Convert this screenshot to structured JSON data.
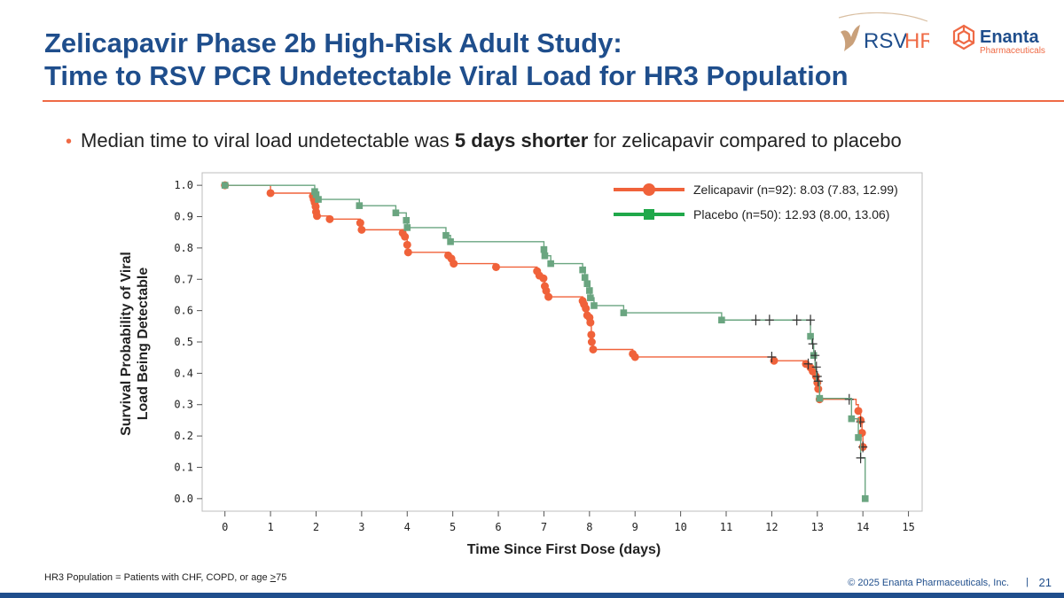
{
  "title": {
    "line1": "Zelicapavir Phase 2b High-Risk Adult Study:",
    "line2": "Time to RSV PCR Undetectable Viral Load for HR3 Population"
  },
  "logos": {
    "rsv_a": "RSV",
    "rsv_b": "HR",
    "enanta_name": "Enanta",
    "enanta_sub": "Pharmaceuticals"
  },
  "bullet": {
    "pre": "Median time to viral load undetectable was ",
    "bold": "5 days shorter",
    "post": " for zelicapavir compared to placebo"
  },
  "footnote": {
    "pre": "HR3 Population = Patients with CHF, COPD, or age ",
    "ge": ">",
    "post": "75"
  },
  "copyright": "© 2025  Enanta Pharmaceuticals, Inc.",
  "separator": "|",
  "page_number": "21",
  "colors": {
    "title": "#1f4e8c",
    "accent": "#ef6a45",
    "zeli": "#f0623a",
    "placebo": "#6aa580",
    "placebo_legend": "#20a84a"
  },
  "chart_data": {
    "type": "line",
    "subtype": "kaplan-meier step",
    "xlabel": "Time Since First Dose (days)",
    "ylabel_line1": "Survival Probability of Viral",
    "ylabel_line2": "Load Being Detectable",
    "xlim": [
      -0.5,
      15.3
    ],
    "ylim": [
      -0.04,
      1.04
    ],
    "xticks": [
      0,
      1,
      2,
      3,
      4,
      5,
      6,
      7,
      8,
      9,
      10,
      11,
      12,
      13,
      14,
      15
    ],
    "xtick_labels": [
      "0",
      "1",
      "2",
      "3",
      "4",
      "5",
      "6",
      "7",
      "8",
      "9",
      "10",
      "11",
      "12",
      "13",
      "14",
      "15"
    ],
    "yticks": [
      0,
      0.1,
      0.2,
      0.3,
      0.4,
      0.5,
      0.6,
      0.7,
      0.8,
      0.9,
      1.0
    ],
    "ytick_labels": [
      "0.0",
      "0.1",
      "0.2",
      "0.3",
      "0.4",
      "0.5",
      "0.6",
      "0.7",
      "0.8",
      "0.9",
      "1.0"
    ],
    "series": [
      {
        "name": "Zelicapavir (n=92): 8.03 (7.83, 12.99)",
        "steps": [
          [
            0,
            1.0
          ],
          [
            1,
            0.975
          ],
          [
            1.93,
            0.965
          ],
          [
            1.95,
            0.955
          ],
          [
            1.97,
            0.945
          ],
          [
            1.99,
            0.932
          ],
          [
            2.0,
            0.915
          ],
          [
            2.02,
            0.902
          ],
          [
            2.3,
            0.892
          ],
          [
            2.97,
            0.88
          ],
          [
            3.0,
            0.858
          ],
          [
            3.9,
            0.848
          ],
          [
            3.95,
            0.836
          ],
          [
            4.0,
            0.81
          ],
          [
            4.02,
            0.786
          ],
          [
            4.9,
            0.776
          ],
          [
            4.97,
            0.766
          ],
          [
            5.02,
            0.75
          ],
          [
            5.95,
            0.739
          ],
          [
            6.85,
            0.726
          ],
          [
            6.9,
            0.712
          ],
          [
            6.99,
            0.703
          ],
          [
            7.02,
            0.678
          ],
          [
            7.05,
            0.663
          ],
          [
            7.1,
            0.644
          ],
          [
            7.85,
            0.631
          ],
          [
            7.88,
            0.62
          ],
          [
            7.92,
            0.607
          ],
          [
            7.95,
            0.585
          ],
          [
            8.0,
            0.578
          ],
          [
            8.02,
            0.562
          ],
          [
            8.04,
            0.523
          ],
          [
            8.05,
            0.5
          ],
          [
            8.08,
            0.476
          ],
          [
            8.95,
            0.462
          ],
          [
            9.0,
            0.452
          ],
          [
            12.05,
            0.44
          ],
          [
            12.75,
            0.43
          ],
          [
            12.85,
            0.418
          ],
          [
            12.9,
            0.406
          ],
          [
            12.97,
            0.39
          ],
          [
            13.0,
            0.37
          ],
          [
            13.02,
            0.35
          ],
          [
            13.05,
            0.317
          ],
          [
            13.85,
            0.3
          ],
          [
            13.9,
            0.28
          ],
          [
            13.95,
            0.25
          ],
          [
            13.98,
            0.21
          ],
          [
            14.0,
            0.165
          ],
          [
            14.05,
            0.16
          ]
        ],
        "markers": [
          [
            0,
            1.0
          ],
          [
            1,
            0.975
          ],
          [
            1.93,
            0.965
          ],
          [
            1.95,
            0.955
          ],
          [
            1.97,
            0.945
          ],
          [
            1.99,
            0.932
          ],
          [
            2.0,
            0.915
          ],
          [
            2.02,
            0.902
          ],
          [
            2.3,
            0.892
          ],
          [
            2.97,
            0.88
          ],
          [
            3.0,
            0.858
          ],
          [
            3.9,
            0.848
          ],
          [
            3.95,
            0.836
          ],
          [
            4.0,
            0.81
          ],
          [
            4.02,
            0.786
          ],
          [
            4.9,
            0.776
          ],
          [
            4.97,
            0.766
          ],
          [
            5.02,
            0.75
          ],
          [
            5.95,
            0.739
          ],
          [
            6.85,
            0.726
          ],
          [
            6.9,
            0.712
          ],
          [
            6.99,
            0.703
          ],
          [
            7.02,
            0.678
          ],
          [
            7.05,
            0.663
          ],
          [
            7.1,
            0.644
          ],
          [
            7.85,
            0.631
          ],
          [
            7.88,
            0.62
          ],
          [
            7.92,
            0.607
          ],
          [
            7.95,
            0.585
          ],
          [
            8.0,
            0.578
          ],
          [
            8.02,
            0.562
          ],
          [
            8.04,
            0.523
          ],
          [
            8.05,
            0.5
          ],
          [
            8.08,
            0.476
          ],
          [
            8.95,
            0.462
          ],
          [
            9.0,
            0.452
          ],
          [
            12.05,
            0.44
          ],
          [
            12.75,
            0.43
          ],
          [
            12.85,
            0.418
          ],
          [
            12.9,
            0.406
          ],
          [
            12.97,
            0.39
          ],
          [
            13.0,
            0.37
          ],
          [
            13.02,
            0.35
          ],
          [
            13.05,
            0.317
          ],
          [
            13.9,
            0.28
          ],
          [
            13.95,
            0.25
          ],
          [
            13.98,
            0.21
          ],
          [
            14.0,
            0.165
          ]
        ],
        "censored": [
          [
            12.0,
            0.452
          ],
          [
            12.8,
            0.43
          ],
          [
            13.7,
            0.317
          ],
          [
            13.95,
            0.245
          ],
          [
            14.0,
            0.165
          ]
        ]
      },
      {
        "name": "Placebo (n=50): 12.93 (8.00, 13.06)",
        "steps": [
          [
            0,
            1.0
          ],
          [
            1.97,
            0.98
          ],
          [
            2.0,
            0.97
          ],
          [
            2.05,
            0.955
          ],
          [
            2.95,
            0.935
          ],
          [
            3.75,
            0.912
          ],
          [
            3.98,
            0.888
          ],
          [
            4.0,
            0.865
          ],
          [
            4.85,
            0.84
          ],
          [
            4.95,
            0.82
          ],
          [
            7.0,
            0.795
          ],
          [
            7.02,
            0.775
          ],
          [
            7.15,
            0.75
          ],
          [
            7.85,
            0.73
          ],
          [
            7.9,
            0.706
          ],
          [
            7.95,
            0.686
          ],
          [
            8.0,
            0.664
          ],
          [
            8.02,
            0.641
          ],
          [
            8.1,
            0.616
          ],
          [
            8.75,
            0.593
          ],
          [
            10.9,
            0.57
          ],
          [
            12.85,
            0.518
          ],
          [
            12.88,
            0.494
          ],
          [
            12.92,
            0.457
          ],
          [
            12.95,
            0.415
          ],
          [
            12.98,
            0.375
          ],
          [
            13.05,
            0.32
          ],
          [
            13.75,
            0.255
          ],
          [
            13.9,
            0.195
          ],
          [
            13.95,
            0.13
          ],
          [
            14.05,
            0.0
          ]
        ],
        "markers": [
          [
            0,
            1.0
          ],
          [
            1.97,
            0.98
          ],
          [
            2.0,
            0.97
          ],
          [
            2.05,
            0.955
          ],
          [
            2.95,
            0.935
          ],
          [
            3.75,
            0.912
          ],
          [
            3.98,
            0.888
          ],
          [
            4.0,
            0.865
          ],
          [
            4.85,
            0.84
          ],
          [
            4.95,
            0.82
          ],
          [
            7.0,
            0.795
          ],
          [
            7.02,
            0.775
          ],
          [
            7.15,
            0.75
          ],
          [
            7.85,
            0.73
          ],
          [
            7.9,
            0.706
          ],
          [
            7.95,
            0.686
          ],
          [
            8.0,
            0.664
          ],
          [
            8.02,
            0.641
          ],
          [
            8.1,
            0.616
          ],
          [
            8.75,
            0.593
          ],
          [
            10.9,
            0.57
          ],
          [
            12.85,
            0.518
          ],
          [
            12.92,
            0.457
          ],
          [
            13.05,
            0.32
          ],
          [
            13.75,
            0.255
          ],
          [
            13.9,
            0.195
          ],
          [
            14.05,
            0.0
          ]
        ],
        "censored": [
          [
            11.65,
            0.57
          ],
          [
            11.95,
            0.57
          ],
          [
            12.55,
            0.57
          ],
          [
            12.85,
            0.57
          ],
          [
            12.9,
            0.494
          ],
          [
            12.95,
            0.457
          ],
          [
            12.98,
            0.42
          ],
          [
            13.0,
            0.39
          ],
          [
            13.02,
            0.375
          ],
          [
            13.95,
            0.13
          ]
        ]
      }
    ]
  }
}
